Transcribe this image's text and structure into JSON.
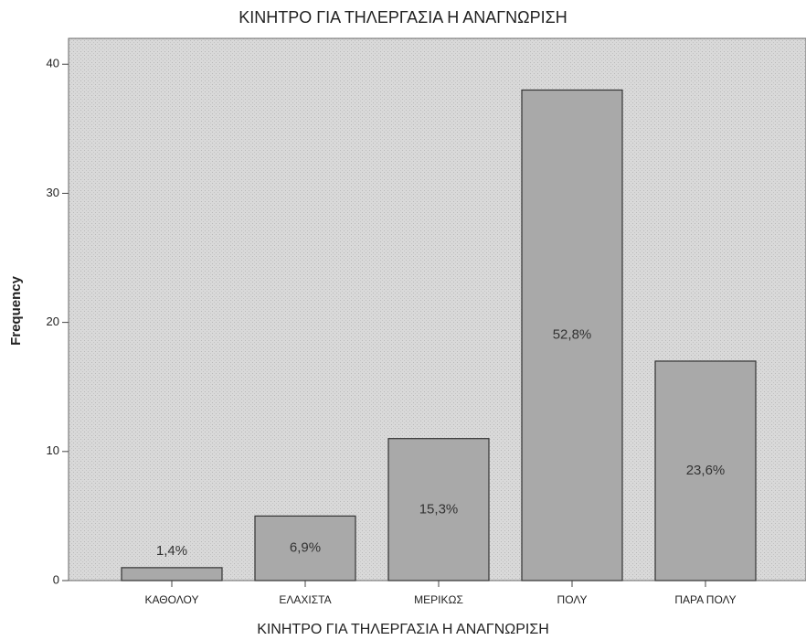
{
  "chart_data": {
    "type": "bar",
    "title": "ΚΙΝΗΤΡΟ ΓΙΑ ΤΗΛΕΡΓΑΣΙΑ Η ΑΝΑΓΝΩΡΙΣΗ",
    "x_label": "ΚΙΝΗΤΡΟ ΓΙΑ ΤΗΛΕΡΓΑΣΙΑ Η ΑΝΑΓΝΩΡΙΣΗ",
    "y_label": "Frequency",
    "categories": [
      "ΚΑΘΟΛΟΥ",
      "ΕΛΑΧΙΣΤΑ",
      "ΜΕΡΙΚΩΣ",
      "ΠΟΛΥ",
      "ΠΑΡΑ ΠΟΛΥ"
    ],
    "values": [
      1,
      5,
      11,
      38,
      17
    ],
    "percent": {
      "values": [
        1.4,
        6.9,
        15.3,
        52.8,
        23.6
      ],
      "value_labels": [
        "1,4%",
        "6,9%",
        "15,3%",
        "52,8%",
        "23,6%"
      ]
    },
    "color": "#a9a9a9",
    "ylim": [
      0,
      42
    ],
    "yticks": [
      0,
      10,
      20,
      30,
      40
    ],
    "grid": false
  }
}
